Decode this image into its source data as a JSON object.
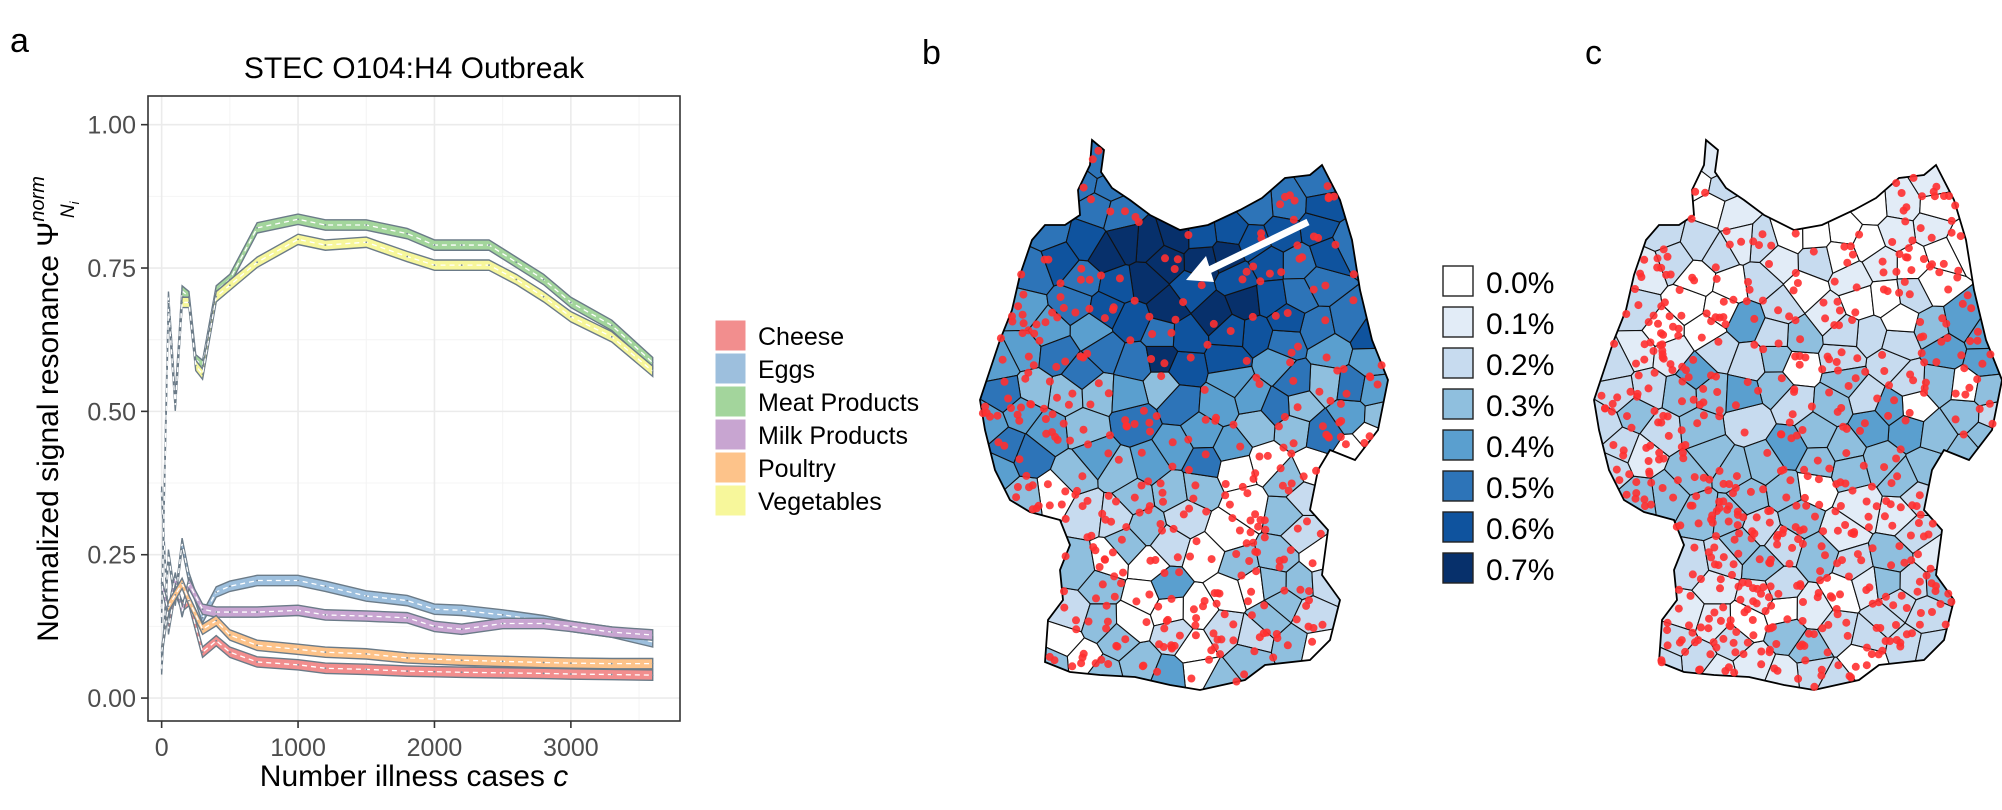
{
  "panels": {
    "a": {
      "label": "a"
    },
    "b": {
      "label": "b"
    },
    "c": {
      "label": "c"
    }
  },
  "chart_data": [
    {
      "type": "line",
      "panel": "a",
      "title": "STEC O104:H4 Outbreak",
      "xlabel": "Number illness cases c",
      "xlabel_main": "Number illness cases ",
      "xlabel_var": "c",
      "ylabel": "Normalized signal resonance Ψ_Ni^norm",
      "ylabel_main": "Normalized signal resonance ",
      "ylabel_symbol": "Ψ",
      "ylabel_sup": "norm",
      "ylabel_sub": "N",
      "ylabel_subsub": "i",
      "xlim": [
        -100,
        3800
      ],
      "ylim": [
        -0.04,
        1.05
      ],
      "xticks": [
        0,
        1000,
        2000,
        3000
      ],
      "xtick_labels": [
        "0",
        "1000",
        "2000",
        "3000"
      ],
      "yticks": [
        0,
        0.25,
        0.5,
        0.75,
        1.0
      ],
      "ytick_labels": [
        "0.00",
        "0.25",
        "0.50",
        "0.75",
        "1.00"
      ],
      "grid": true,
      "legend_position": "right",
      "band_halfwidth": 0.009,
      "series": [
        {
          "name": "Cheese",
          "color": "#f28e8e",
          "x": [
            0,
            50,
            100,
            150,
            200,
            300,
            400,
            500,
            700,
            1000,
            1200,
            1500,
            1800,
            2000,
            2200,
            2500,
            2800,
            3000,
            3300,
            3600
          ],
          "y": [
            0.36,
            0.12,
            0.19,
            0.16,
            0.17,
            0.08,
            0.1,
            0.08,
            0.063,
            0.058,
            0.052,
            0.05,
            0.047,
            0.046,
            0.045,
            0.044,
            0.043,
            0.042,
            0.041,
            0.04
          ]
        },
        {
          "name": "Eggs",
          "color": "#9dbfdd",
          "x": [
            0,
            50,
            100,
            150,
            200,
            300,
            400,
            500,
            700,
            1000,
            1200,
            1500,
            1800,
            2000,
            2200,
            2500,
            2800,
            3000,
            3300,
            3600
          ],
          "y": [
            0.05,
            0.25,
            0.17,
            0.27,
            0.21,
            0.14,
            0.185,
            0.195,
            0.205,
            0.205,
            0.195,
            0.178,
            0.17,
            0.155,
            0.153,
            0.145,
            0.135,
            0.125,
            0.115,
            0.098
          ]
        },
        {
          "name": "Meat Products",
          "color": "#a3d59c",
          "x": [
            0,
            50,
            100,
            150,
            200,
            250,
            300,
            400,
            500,
            700,
            1000,
            1200,
            1500,
            1800,
            2000,
            2200,
            2400,
            2600,
            2800,
            3000,
            3300,
            3600
          ],
          "y": [
            0.16,
            0.7,
            0.52,
            0.71,
            0.7,
            0.59,
            0.58,
            0.71,
            0.73,
            0.82,
            0.835,
            0.825,
            0.825,
            0.81,
            0.79,
            0.79,
            0.79,
            0.76,
            0.73,
            0.69,
            0.65,
            0.585
          ]
        },
        {
          "name": "Milk Products",
          "color": "#c8a5d1",
          "x": [
            0,
            50,
            100,
            150,
            200,
            300,
            400,
            500,
            700,
            1000,
            1200,
            1500,
            1800,
            2000,
            2200,
            2500,
            2800,
            3000,
            3300,
            3600
          ],
          "y": [
            0.2,
            0.15,
            0.21,
            0.15,
            0.2,
            0.155,
            0.15,
            0.15,
            0.15,
            0.153,
            0.145,
            0.143,
            0.14,
            0.125,
            0.12,
            0.13,
            0.13,
            0.125,
            0.115,
            0.11
          ]
        },
        {
          "name": "Poultry",
          "color": "#fdc38a",
          "x": [
            0,
            50,
            100,
            150,
            200,
            300,
            400,
            500,
            700,
            1000,
            1200,
            1500,
            1800,
            2000,
            2200,
            2500,
            2800,
            3000,
            3300,
            3600
          ],
          "y": [
            0.08,
            0.16,
            0.18,
            0.2,
            0.17,
            0.12,
            0.135,
            0.11,
            0.092,
            0.085,
            0.08,
            0.077,
            0.07,
            0.068,
            0.066,
            0.064,
            0.062,
            0.061,
            0.06,
            0.06
          ]
        },
        {
          "name": "Vegetables",
          "color": "#f7f79b",
          "x": [
            0,
            50,
            100,
            150,
            200,
            250,
            300,
            400,
            500,
            700,
            1000,
            1200,
            1500,
            1800,
            2000,
            2200,
            2400,
            2600,
            2800,
            3000,
            3300,
            3600
          ],
          "y": [
            0.14,
            0.68,
            0.51,
            0.69,
            0.69,
            0.58,
            0.565,
            0.7,
            0.72,
            0.76,
            0.8,
            0.79,
            0.795,
            0.77,
            0.755,
            0.755,
            0.755,
            0.73,
            0.7,
            0.665,
            0.63,
            0.57
          ]
        }
      ]
    },
    {
      "type": "heatmap",
      "panel": "b",
      "subtype": "choropleth-map",
      "legend": [
        {
          "label": "0.0%",
          "color": "#ffffff"
        },
        {
          "label": "0.1%",
          "color": "#e2ecf7"
        },
        {
          "label": "0.2%",
          "color": "#c7dbef"
        },
        {
          "label": "0.3%",
          "color": "#8fbfde"
        },
        {
          "label": "0.4%",
          "color": "#5a9fcf"
        },
        {
          "label": "0.5%",
          "color": "#2d74b8"
        },
        {
          "label": "0.6%",
          "color": "#0f539e"
        },
        {
          "label": "0.7%",
          "color": "#07306b"
        }
      ],
      "dot_color": "#ff3030",
      "arrow": true
    },
    {
      "type": "heatmap",
      "panel": "c",
      "subtype": "choropleth-map",
      "dot_color": "#ff3030"
    }
  ]
}
